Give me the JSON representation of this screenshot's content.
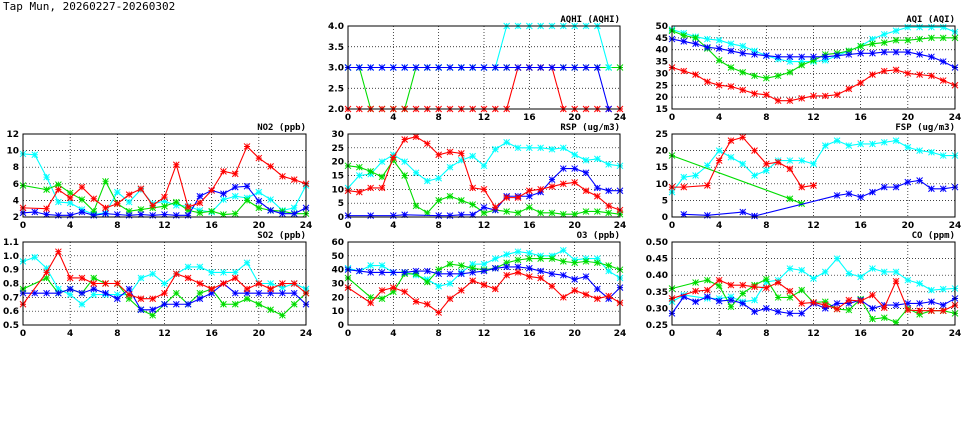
{
  "page_title": "Tap Mun, 20260227-20260302",
  "colors": {
    "red": "#ff0000",
    "green": "#00dd00",
    "blue": "#0000ff",
    "cyan": "#00ffff"
  },
  "chart_data": [
    {
      "id": "aqhi",
      "type": "line",
      "title": "AQHI (AQHI)",
      "xlim": [
        0,
        24
      ],
      "xticks": [
        0,
        4,
        8,
        12,
        16,
        20,
        24
      ],
      "ylim": [
        2,
        4
      ],
      "yticks": [
        "2.0",
        "2.5",
        "3.0",
        "3.5",
        "4.0"
      ],
      "grid": true,
      "series": [
        {
          "color": "green",
          "values": [
            3,
            3,
            2,
            2,
            2,
            2,
            3,
            3,
            3,
            3,
            3,
            3,
            3,
            3,
            3,
            3,
            3,
            3,
            3,
            3,
            3,
            3,
            3,
            3,
            3
          ]
        },
        {
          "color": "cyan",
          "values": [
            3,
            3,
            3,
            3,
            3,
            3,
            3,
            3,
            3,
            3,
            3,
            3,
            3,
            3,
            4,
            4,
            4,
            4,
            4,
            4,
            4,
            4,
            4,
            3,
            null
          ]
        },
        {
          "color": "red",
          "values": [
            2,
            2,
            2,
            2,
            2,
            2,
            2,
            2,
            2,
            2,
            2,
            2,
            2,
            2,
            2,
            3,
            3,
            3,
            3,
            2,
            2,
            2,
            2,
            2,
            2
          ]
        },
        {
          "color": "blue",
          "values": [
            3,
            3,
            3,
            3,
            3,
            3,
            3,
            3,
            3,
            3,
            3,
            3,
            3,
            3,
            3,
            3,
            3,
            3,
            3,
            3,
            3,
            3,
            3,
            2,
            null
          ]
        }
      ]
    },
    {
      "id": "aqi",
      "type": "line",
      "title": "AQI (AQI)",
      "xlim": [
        0,
        24
      ],
      "xticks": [
        0,
        4,
        8,
        12,
        16,
        20,
        24
      ],
      "ylim": [
        15,
        50
      ],
      "yticks": [
        "15",
        "20",
        "25",
        "30",
        "35",
        "40",
        "45",
        "50"
      ],
      "grid": true,
      "series": [
        {
          "color": "cyan",
          "values": [
            48.5,
            47,
            45.5,
            44.5,
            44,
            42.5,
            41.5,
            39.5,
            37.5,
            36,
            35,
            35,
            35,
            35.5,
            37.5,
            39.5,
            41.5,
            44.5,
            46.5,
            48,
            49.5,
            49.5,
            49.5,
            49.5,
            47.5
          ]
        },
        {
          "color": "green",
          "values": [
            48,
            46,
            45,
            40.5,
            35.5,
            32.5,
            30.5,
            29,
            28,
            29,
            30.5,
            33.5,
            35.5,
            38,
            38.5,
            39.5,
            41.5,
            42.5,
            43,
            44,
            44,
            44.5,
            45,
            45,
            45
          ]
        },
        {
          "color": "blue",
          "values": [
            44.5,
            43.5,
            42.5,
            41,
            40.5,
            39.5,
            38.5,
            38,
            37.5,
            37,
            37,
            37,
            37,
            37,
            37.5,
            38,
            38.5,
            38.5,
            39,
            39,
            39,
            38,
            37,
            35,
            32.5
          ]
        },
        {
          "color": "red",
          "values": [
            32.5,
            31,
            29.5,
            26.5,
            25,
            24.5,
            23,
            21.5,
            21,
            18.5,
            18.5,
            19.5,
            20.5,
            20.5,
            21,
            23.5,
            26,
            29.5,
            31,
            31.5,
            30,
            29.5,
            29,
            27,
            25
          ]
        }
      ]
    },
    {
      "id": "no2",
      "type": "line",
      "title": "NO2 (ppb)",
      "xlim": [
        0,
        24
      ],
      "xticks": [
        0,
        4,
        8,
        12,
        16,
        20,
        24
      ],
      "ylim": [
        2,
        12
      ],
      "yticks": [
        "2",
        "4",
        "6",
        "8",
        "10",
        "12"
      ],
      "grid": true,
      "series": [
        {
          "color": "cyan",
          "values": [
            9.6,
            9.5,
            6.8,
            3.8,
            3.7,
            2.9,
            2.3,
            2.5,
            5.0,
            3.8,
            5.3,
            3.6,
            3.9,
            3.4,
            3.3,
            2.8,
            2.6,
            4.1,
            4.5,
            4.3,
            5.0,
            4.1,
            2.8,
            3.1,
            5.8
          ]
        },
        {
          "color": "green",
          "values": [
            5.8,
            null,
            5.3,
            5.9,
            4.9,
            4.1,
            2.7,
            6.3,
            3.6,
            2.7,
            2.9,
            3.1,
            3.3,
            3.8,
            2.8,
            2.5,
            2.7,
            2.3,
            2.4,
            4.0,
            3.1,
            2.8,
            2.7,
            2.4,
            2.4
          ]
        },
        {
          "color": "blue",
          "values": [
            2.5,
            2.6,
            2.3,
            2.2,
            2.2,
            2.6,
            2.2,
            2.4,
            2.3,
            2.2,
            2.3,
            2.2,
            2.3,
            2.2,
            2.2,
            4.5,
            5.2,
            4.8,
            5.6,
            5.7,
            3.9,
            2.8,
            2.4,
            2.4,
            3.1
          ]
        },
        {
          "color": "red",
          "values": [
            3.1,
            null,
            3.0,
            5.3,
            4.3,
            5.6,
            4.2,
            3.1,
            3.6,
            4.7,
            5.4,
            3.4,
            4.4,
            8.3,
            3.2,
            3.7,
            5.2,
            7.5,
            7.2,
            10.5,
            9.1,
            8.1,
            6.9,
            6.5,
            6.0
          ]
        }
      ]
    },
    {
      "id": "rsp",
      "type": "line",
      "title": "RSP (ug/m3)",
      "xlim": [
        0,
        24
      ],
      "xticks": [
        0,
        4,
        8,
        12,
        16,
        20,
        24
      ],
      "ylim": [
        0,
        30
      ],
      "yticks": [
        "0",
        "5",
        "10",
        "15",
        "20",
        "25",
        "30"
      ],
      "grid": true,
      "series": [
        {
          "color": "cyan",
          "values": [
            10.5,
            15,
            15.5,
            20,
            22.5,
            20,
            16,
            13,
            14,
            18,
            20.5,
            22,
            18.5,
            24.5,
            27,
            25,
            25,
            25,
            24.5,
            25,
            22.5,
            20.5,
            21,
            19,
            18.5
          ]
        },
        {
          "color": "green",
          "values": [
            18.5,
            18,
            16.5,
            14.5,
            20.5,
            15,
            4,
            1.5,
            6,
            7.5,
            6,
            4.5,
            1.5,
            2.5,
            2,
            1.5,
            3.5,
            1.5,
            1.5,
            1,
            1,
            2,
            2,
            1.5,
            1
          ]
        },
        {
          "color": "blue",
          "values": [
            0.5,
            null,
            0.5,
            null,
            0.5,
            0.8,
            null,
            null,
            0.5,
            0.5,
            0.8,
            0.8,
            3.5,
            2.5,
            7.5,
            7.5,
            7.5,
            9,
            13.5,
            17.5,
            17.5,
            16,
            10.5,
            9.5,
            9.5
          ]
        },
        {
          "color": "red",
          "values": [
            9.5,
            9,
            10.5,
            10.5,
            21.5,
            28,
            29,
            26.5,
            22.5,
            23.5,
            23,
            10.5,
            10,
            3.5,
            7,
            7,
            9.5,
            10,
            11,
            12,
            12.5,
            9.5,
            7.5,
            4,
            2.5
          ]
        }
      ]
    },
    {
      "id": "fsp",
      "type": "line",
      "title": "FSP (ug/m3)",
      "xlim": [
        0,
        24
      ],
      "xticks": [
        0,
        4,
        8,
        12,
        16,
        20,
        24
      ],
      "ylim": [
        0,
        25
      ],
      "yticks": [
        "0",
        "5",
        "10",
        "15",
        "20",
        "25"
      ],
      "grid": true,
      "series": [
        {
          "color": "cyan",
          "values": [
            7.5,
            12,
            12.5,
            15.5,
            20,
            18,
            16,
            12.5,
            14,
            17,
            17,
            17,
            16,
            21.5,
            23,
            21.5,
            22,
            22,
            22.5,
            23,
            21,
            20,
            19.5,
            18.5,
            18.5
          ]
        },
        {
          "color": "green",
          "values": [
            18.5,
            null,
            null,
            null,
            null,
            null,
            null,
            null,
            null,
            null,
            5.5,
            4,
            null,
            null,
            null,
            null,
            null,
            null,
            null,
            null,
            null,
            null,
            null,
            null,
            null
          ]
        },
        {
          "color": "blue",
          "values": [
            null,
            0.8,
            null,
            0.5,
            null,
            null,
            1.5,
            0.3,
            null,
            null,
            null,
            null,
            null,
            null,
            6.5,
            7,
            6,
            7.5,
            9,
            9,
            10.5,
            11,
            8.5,
            8.5,
            9
          ]
        },
        {
          "color": "red",
          "values": [
            9,
            9,
            null,
            9.5,
            17,
            23,
            24,
            20,
            16,
            16.5,
            14.5,
            9,
            9.5,
            null,
            null,
            null,
            null,
            null,
            null,
            null,
            null,
            null,
            null,
            null,
            null
          ]
        }
      ]
    },
    {
      "id": "so2",
      "type": "line",
      "title": "SO2 (ppb)",
      "xlim": [
        0,
        24
      ],
      "xticks": [
        0,
        4,
        8,
        12,
        16,
        20,
        24
      ],
      "ylim": [
        0.5,
        1.1
      ],
      "yticks": [
        "0.5",
        "0.6",
        "0.7",
        "0.8",
        "0.9",
        "1.0",
        "1.1"
      ],
      "grid": true,
      "series": [
        {
          "color": "cyan",
          "values": [
            0.96,
            0.99,
            0.91,
            0.76,
            0.72,
            0.65,
            0.72,
            0.72,
            0.72,
            0.72,
            0.84,
            0.87,
            0.8,
            0.87,
            0.92,
            0.92,
            0.88,
            0.88,
            0.88,
            0.95,
            0.8,
            0.8,
            0.77,
            0.8,
            0.76
          ]
        },
        {
          "color": "green",
          "values": [
            0.76,
            null,
            0.84,
            0.73,
            0.76,
            0.73,
            0.84,
            0.8,
            0.8,
            0.69,
            0.61,
            0.57,
            0.65,
            0.73,
            0.65,
            0.73,
            0.76,
            0.65,
            0.65,
            0.69,
            0.65,
            0.61,
            0.57,
            0.65,
            0.73
          ]
        },
        {
          "color": "blue",
          "values": [
            0.73,
            0.73,
            0.73,
            0.73,
            0.76,
            0.73,
            0.76,
            0.73,
            0.69,
            0.76,
            0.61,
            0.61,
            0.65,
            0.65,
            0.65,
            0.69,
            0.73,
            0.8,
            0.73,
            0.73,
            0.73,
            0.73,
            0.73,
            0.73,
            0.65
          ]
        },
        {
          "color": "red",
          "values": [
            0.65,
            null,
            0.88,
            1.03,
            0.84,
            0.84,
            0.8,
            0.8,
            0.8,
            0.72,
            0.69,
            0.69,
            0.73,
            0.87,
            0.84,
            0.8,
            0.76,
            0.8,
            0.84,
            0.76,
            0.8,
            0.76,
            0.8,
            0.8,
            0.73
          ]
        }
      ]
    },
    {
      "id": "o3",
      "type": "line",
      "title": "O3 (ppb)",
      "xlim": [
        0,
        24
      ],
      "xticks": [
        0,
        4,
        8,
        12,
        16,
        20,
        24
      ],
      "ylim": [
        0,
        60
      ],
      "yticks": [
        "0",
        "10",
        "20",
        "30",
        "40",
        "50",
        "60"
      ],
      "grid": true,
      "series": [
        {
          "color": "cyan",
          "values": [
            41,
            39,
            43,
            43,
            38,
            38,
            36,
            33,
            28,
            30,
            38,
            44,
            44,
            48,
            51,
            53,
            52,
            50,
            50,
            54,
            47,
            48,
            48,
            39,
            34
          ]
        },
        {
          "color": "green",
          "values": [
            34,
            null,
            20,
            19,
            24,
            37,
            37,
            31,
            40,
            44,
            43,
            41,
            40,
            41,
            45,
            47,
            48,
            48,
            48,
            46,
            45,
            46,
            45,
            43,
            40
          ]
        },
        {
          "color": "blue",
          "values": [
            40,
            39,
            38,
            38,
            38,
            38,
            39,
            39,
            37,
            37,
            37,
            38,
            39,
            41,
            42,
            42,
            41,
            39,
            37,
            36,
            33,
            35,
            26,
            19,
            27
          ]
        },
        {
          "color": "red",
          "values": [
            27,
            null,
            16,
            25,
            27,
            24,
            17,
            15,
            9,
            19,
            25,
            32,
            29,
            26,
            36,
            38,
            35,
            34,
            28,
            20,
            25,
            22,
            19,
            21,
            16
          ]
        }
      ]
    },
    {
      "id": "co",
      "type": "line",
      "title": "CO (ppm)",
      "xlim": [
        0,
        24
      ],
      "xticks": [
        0,
        4,
        8,
        12,
        16,
        20,
        24
      ],
      "ylim": [
        0.25,
        0.5
      ],
      "yticks": [
        "0.25",
        "0.30",
        "0.35",
        "0.40",
        "0.45",
        "0.50"
      ],
      "grid": true,
      "series": [
        {
          "color": "cyan",
          "values": [
            0.32,
            0.34,
            null,
            0.33,
            0.33,
            0.335,
            0.32,
            0.325,
            0.38,
            0.385,
            0.42,
            0.415,
            0.39,
            0.41,
            0.45,
            0.405,
            0.395,
            0.42,
            0.41,
            0.41,
            0.385,
            0.375,
            0.355,
            0.358,
            0.36
          ]
        },
        {
          "color": "green",
          "values": [
            0.36,
            null,
            0.378,
            0.385,
            0.368,
            0.305,
            0.345,
            0.37,
            0.388,
            0.333,
            0.333,
            0.355,
            0.318,
            0.32,
            0.298,
            0.295,
            0.328,
            0.268,
            0.272,
            0.258,
            0.3,
            0.282,
            0.293,
            0.293,
            0.285
          ]
        },
        {
          "color": "blue",
          "values": [
            0.285,
            0.335,
            0.32,
            0.335,
            0.322,
            0.325,
            0.315,
            0.29,
            0.3,
            0.29,
            0.285,
            0.285,
            0.315,
            0.3,
            0.315,
            0.315,
            0.325,
            0.3,
            0.31,
            0.31,
            0.315,
            0.315,
            0.32,
            0.31,
            0.33
          ]
        },
        {
          "color": "red",
          "values": [
            0.33,
            null,
            0.352,
            0.355,
            0.385,
            0.37,
            0.37,
            0.365,
            0.362,
            0.378,
            0.352,
            0.315,
            0.318,
            0.31,
            0.298,
            0.325,
            0.322,
            0.34,
            0.302,
            0.382,
            0.295,
            0.293,
            0.293,
            0.293,
            0.31
          ]
        }
      ]
    }
  ]
}
